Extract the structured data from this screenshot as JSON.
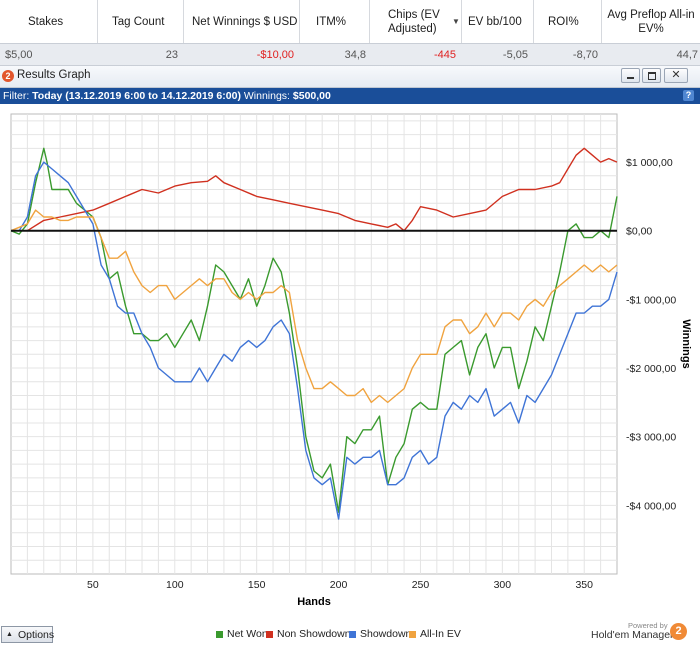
{
  "stats_table": {
    "headers": [
      "Stakes",
      "Tag Count",
      "Net Winnings $ USD",
      "ITM%",
      "Chips (EV Adjusted)",
      "EV bb/100",
      "ROI%",
      "Avg Preflop All-in EV%"
    ],
    "sort_icon": "sort-down-triangle-icon",
    "row": [
      "$5,00",
      "23",
      "-$10,00",
      "34,8",
      "-445",
      "-5,05",
      "-8,70",
      "44,7"
    ]
  },
  "window": {
    "title": "Results Graph",
    "logo_text": "2",
    "buttons": [
      "minimize-icon",
      "restore-icon",
      "close-icon"
    ]
  },
  "filter": {
    "label": "Filter:",
    "value": "Today (13.12.2019 6:00 to 14.12.2019 6:00)",
    "winnings_label": "Winnings:",
    "winnings_value": "$500,00",
    "help": "?"
  },
  "chart_data": {
    "type": "line",
    "title": "",
    "xlabel": "Hands",
    "ylabel": "Winnings",
    "xlim": [
      0,
      370
    ],
    "ylim": [
      -5000,
      1700
    ],
    "xticks": [
      50,
      100,
      150,
      200,
      250,
      300,
      350
    ],
    "yticks": [
      1000,
      0,
      -1000,
      -2000,
      -3000,
      -4000
    ],
    "ytick_labels": [
      "$1 000,00",
      "$0,00",
      "-$1 000,00",
      "-$2 000,00",
      "-$3 000,00",
      "-$4 000,00"
    ],
    "grid": true,
    "legend_position": "bottom",
    "series": [
      {
        "name": "Net Won",
        "color": "#3a9a2e",
        "x": [
          0,
          5,
          10,
          15,
          20,
          22,
          25,
          28,
          30,
          35,
          40,
          45,
          50,
          55,
          60,
          65,
          70,
          75,
          80,
          85,
          90,
          95,
          100,
          105,
          110,
          115,
          120,
          125,
          130,
          135,
          140,
          145,
          150,
          155,
          160,
          165,
          170,
          175,
          180,
          185,
          190,
          195,
          200,
          205,
          210,
          215,
          220,
          225,
          230,
          235,
          240,
          245,
          250,
          255,
          260,
          265,
          270,
          275,
          280,
          285,
          290,
          295,
          300,
          305,
          310,
          315,
          320,
          325,
          330,
          335,
          340,
          345,
          350,
          355,
          360,
          365,
          370
        ],
        "y": [
          0,
          -50,
          100,
          700,
          1200,
          1000,
          600,
          600,
          600,
          600,
          400,
          300,
          200,
          -100,
          -700,
          -600,
          -1100,
          -1500,
          -1500,
          -1600,
          -1600,
          -1500,
          -1700,
          -1500,
          -1300,
          -1600,
          -1100,
          -500,
          -600,
          -800,
          -1000,
          -700,
          -1100,
          -800,
          -400,
          -600,
          -1200,
          -2000,
          -3000,
          -3500,
          -3600,
          -3400,
          -4100,
          -3000,
          -3100,
          -2900,
          -2900,
          -2700,
          -3700,
          -3300,
          -3100,
          -2600,
          -2500,
          -2600,
          -2600,
          -1800,
          -1700,
          -1600,
          -2100,
          -1700,
          -1500,
          -2000,
          -1700,
          -1700,
          -2300,
          -1900,
          -1400,
          -1600,
          -1100,
          -600,
          0,
          100,
          -100,
          -100,
          0,
          -100,
          500
        ]
      },
      {
        "name": "Non Showdown",
        "color": "#d0301f",
        "x": [
          0,
          10,
          20,
          30,
          40,
          50,
          60,
          70,
          80,
          90,
          100,
          110,
          120,
          125,
          130,
          140,
          150,
          160,
          170,
          180,
          190,
          200,
          210,
          220,
          230,
          235,
          240,
          245,
          250,
          260,
          270,
          280,
          290,
          300,
          310,
          320,
          330,
          335,
          340,
          345,
          350,
          355,
          360,
          365,
          370
        ],
        "y": [
          0,
          0,
          150,
          200,
          250,
          300,
          400,
          500,
          600,
          550,
          650,
          700,
          720,
          800,
          700,
          600,
          500,
          450,
          400,
          350,
          300,
          250,
          150,
          100,
          50,
          100,
          0,
          150,
          350,
          300,
          200,
          250,
          300,
          500,
          600,
          600,
          650,
          700,
          900,
          1100,
          1200,
          1100,
          1000,
          1050,
          1000
        ]
      },
      {
        "name": "Showdown",
        "color": "#3f74d6",
        "x": [
          0,
          5,
          10,
          15,
          20,
          25,
          30,
          35,
          40,
          45,
          50,
          55,
          60,
          65,
          70,
          75,
          80,
          85,
          90,
          95,
          100,
          105,
          110,
          115,
          120,
          125,
          130,
          135,
          140,
          145,
          150,
          155,
          160,
          165,
          170,
          175,
          180,
          185,
          190,
          195,
          200,
          205,
          210,
          215,
          220,
          225,
          230,
          235,
          240,
          245,
          250,
          255,
          260,
          265,
          270,
          275,
          280,
          285,
          290,
          295,
          300,
          305,
          310,
          315,
          320,
          325,
          330,
          335,
          340,
          345,
          350,
          355,
          360,
          365,
          370
        ],
        "y": [
          0,
          0,
          200,
          800,
          1000,
          900,
          800,
          700,
          500,
          300,
          100,
          -500,
          -700,
          -1100,
          -1200,
          -1200,
          -1500,
          -1700,
          -2000,
          -2100,
          -2200,
          -2200,
          -2200,
          -2000,
          -2200,
          -2000,
          -1800,
          -1900,
          -1700,
          -1600,
          -1700,
          -1600,
          -1400,
          -1300,
          -1500,
          -2300,
          -3200,
          -3600,
          -3700,
          -3600,
          -4200,
          -3300,
          -3400,
          -3300,
          -3300,
          -3200,
          -3700,
          -3700,
          -3600,
          -3300,
          -3200,
          -3400,
          -3300,
          -2700,
          -2500,
          -2600,
          -2400,
          -2500,
          -2300,
          -2700,
          -2600,
          -2500,
          -2800,
          -2400,
          -2500,
          -2300,
          -2100,
          -1800,
          -1500,
          -1200,
          -1200,
          -1100,
          -1100,
          -1000,
          -600
        ]
      },
      {
        "name": "All-In EV",
        "color": "#f0a33f",
        "x": [
          0,
          5,
          10,
          15,
          20,
          25,
          30,
          35,
          40,
          45,
          50,
          55,
          60,
          65,
          70,
          75,
          80,
          85,
          90,
          95,
          100,
          105,
          110,
          115,
          120,
          125,
          130,
          135,
          140,
          145,
          150,
          155,
          160,
          165,
          170,
          175,
          180,
          185,
          190,
          195,
          200,
          205,
          210,
          215,
          220,
          225,
          230,
          235,
          240,
          245,
          250,
          255,
          260,
          265,
          270,
          275,
          280,
          285,
          290,
          295,
          300,
          305,
          310,
          315,
          320,
          325,
          330,
          335,
          340,
          345,
          350,
          355,
          360,
          365,
          370
        ],
        "y": [
          0,
          50,
          100,
          300,
          200,
          200,
          150,
          150,
          200,
          200,
          200,
          -100,
          -400,
          -400,
          -300,
          -600,
          -800,
          -900,
          -800,
          -800,
          -1000,
          -900,
          -800,
          -700,
          -800,
          -700,
          -700,
          -900,
          -1000,
          -900,
          -1000,
          -900,
          -900,
          -800,
          -900,
          -1600,
          -2000,
          -2300,
          -2300,
          -2200,
          -2300,
          -2400,
          -2400,
          -2300,
          -2500,
          -2400,
          -2500,
          -2400,
          -2300,
          -2000,
          -1800,
          -1800,
          -1800,
          -1400,
          -1300,
          -1300,
          -1500,
          -1400,
          -1200,
          -1400,
          -1200,
          -1200,
          -1300,
          -1100,
          -1000,
          -1100,
          -900,
          -800,
          -700,
          -600,
          -500,
          -600,
          -500,
          -600,
          -500
        ]
      }
    ]
  },
  "footer": {
    "options_label": "Options",
    "powered_by": "Powered by",
    "brand": "Hold'em Manager",
    "brand_logo": "2"
  }
}
